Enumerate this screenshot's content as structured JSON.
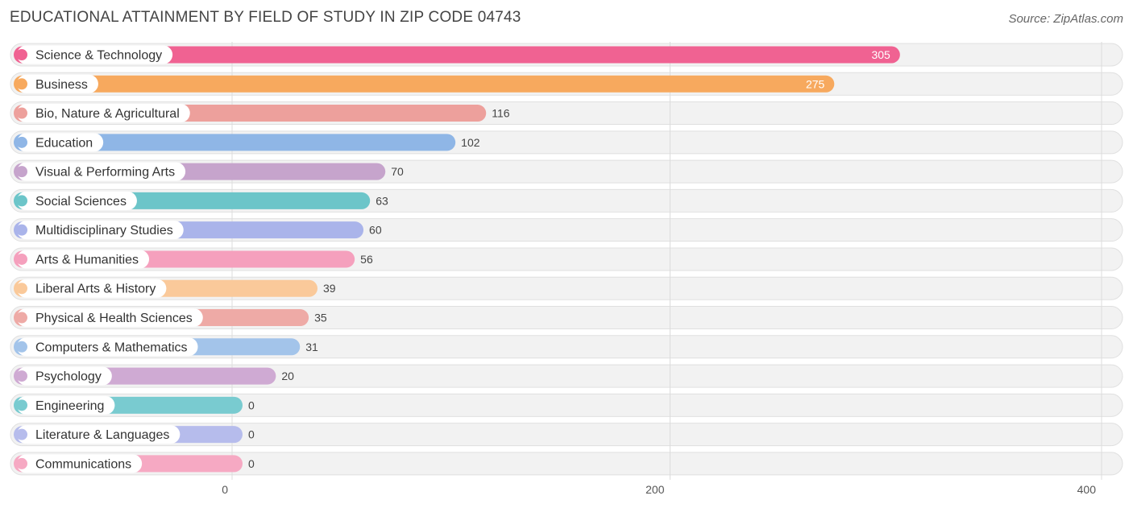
{
  "header": {
    "title": "EDUCATIONAL ATTAINMENT BY FIELD OF STUDY IN ZIP CODE 04743",
    "source": "Source: ZipAtlas.com"
  },
  "chart_data": {
    "type": "bar",
    "orientation": "horizontal",
    "title": "EDUCATIONAL ATTAINMENT BY FIELD OF STUDY IN ZIP CODE 04743",
    "categories": [
      "Science & Technology",
      "Business",
      "Bio, Nature & Agricultural",
      "Education",
      "Visual & Performing Arts",
      "Social Sciences",
      "Multidisciplinary Studies",
      "Arts & Humanities",
      "Liberal Arts & History",
      "Physical & Health Sciences",
      "Computers & Mathematics",
      "Psychology",
      "Engineering",
      "Literature & Languages",
      "Communications"
    ],
    "values": [
      305,
      275,
      116,
      102,
      70,
      63,
      60,
      56,
      39,
      35,
      31,
      20,
      0,
      0,
      0
    ],
    "colors": [
      "#f06292",
      "#f7a95e",
      "#eda09c",
      "#8fb6e6",
      "#c6a4cc",
      "#6cc5c9",
      "#aab4ea",
      "#f5a0bd",
      "#fac99a",
      "#eeaaa6",
      "#a3c4ea",
      "#cfaad3",
      "#79cbd0",
      "#b6bcec",
      "#f6a9c3"
    ],
    "xlim": [
      0,
      400
    ],
    "xticks": [
      0,
      200,
      400
    ],
    "xtick_labels": [
      "0",
      "200",
      "400"
    ],
    "grid": true,
    "xlabel": "",
    "ylabel": ""
  }
}
